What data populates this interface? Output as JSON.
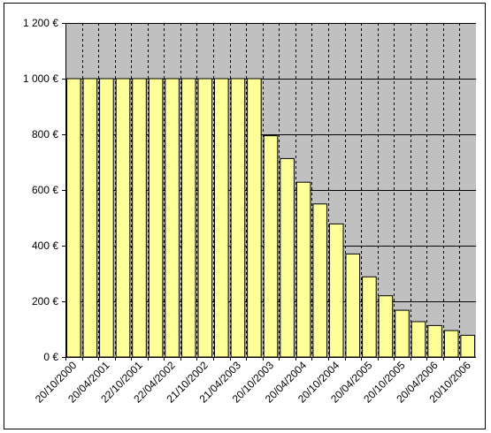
{
  "chart_data": {
    "type": "bar",
    "categories": [
      "20/10/2000",
      "",
      "20/04/2001",
      "",
      "22/10/2001",
      "",
      "22/04/2002",
      "",
      "21/10/2002",
      "",
      "21/04/2003",
      "",
      "20/10/2003",
      "",
      "20/04/2004",
      "",
      "20/10/2004",
      "",
      "20/04/2005",
      "",
      "20/10/2005",
      "",
      "20/04/2006",
      "",
      "20/10/2006"
    ],
    "values": [
      1000,
      1000,
      1000,
      1000,
      1000,
      1000,
      1000,
      1000,
      1000,
      1000,
      1000,
      1000,
      795,
      713,
      628,
      550,
      478,
      370,
      288,
      220,
      168,
      127,
      113,
      95,
      78
    ],
    "yticks": [
      "0 €",
      "200 €",
      "400 €",
      "600 €",
      "800 €",
      "1 000 €",
      "1 200 €"
    ],
    "ylim": [
      0,
      1200
    ],
    "ytick_step": 200,
    "grid": true,
    "colors": {
      "plot_background": "#c0c0c0",
      "bar_fill": "#ffff99",
      "bar_stroke": "#000000",
      "gridline": "#000000"
    }
  }
}
